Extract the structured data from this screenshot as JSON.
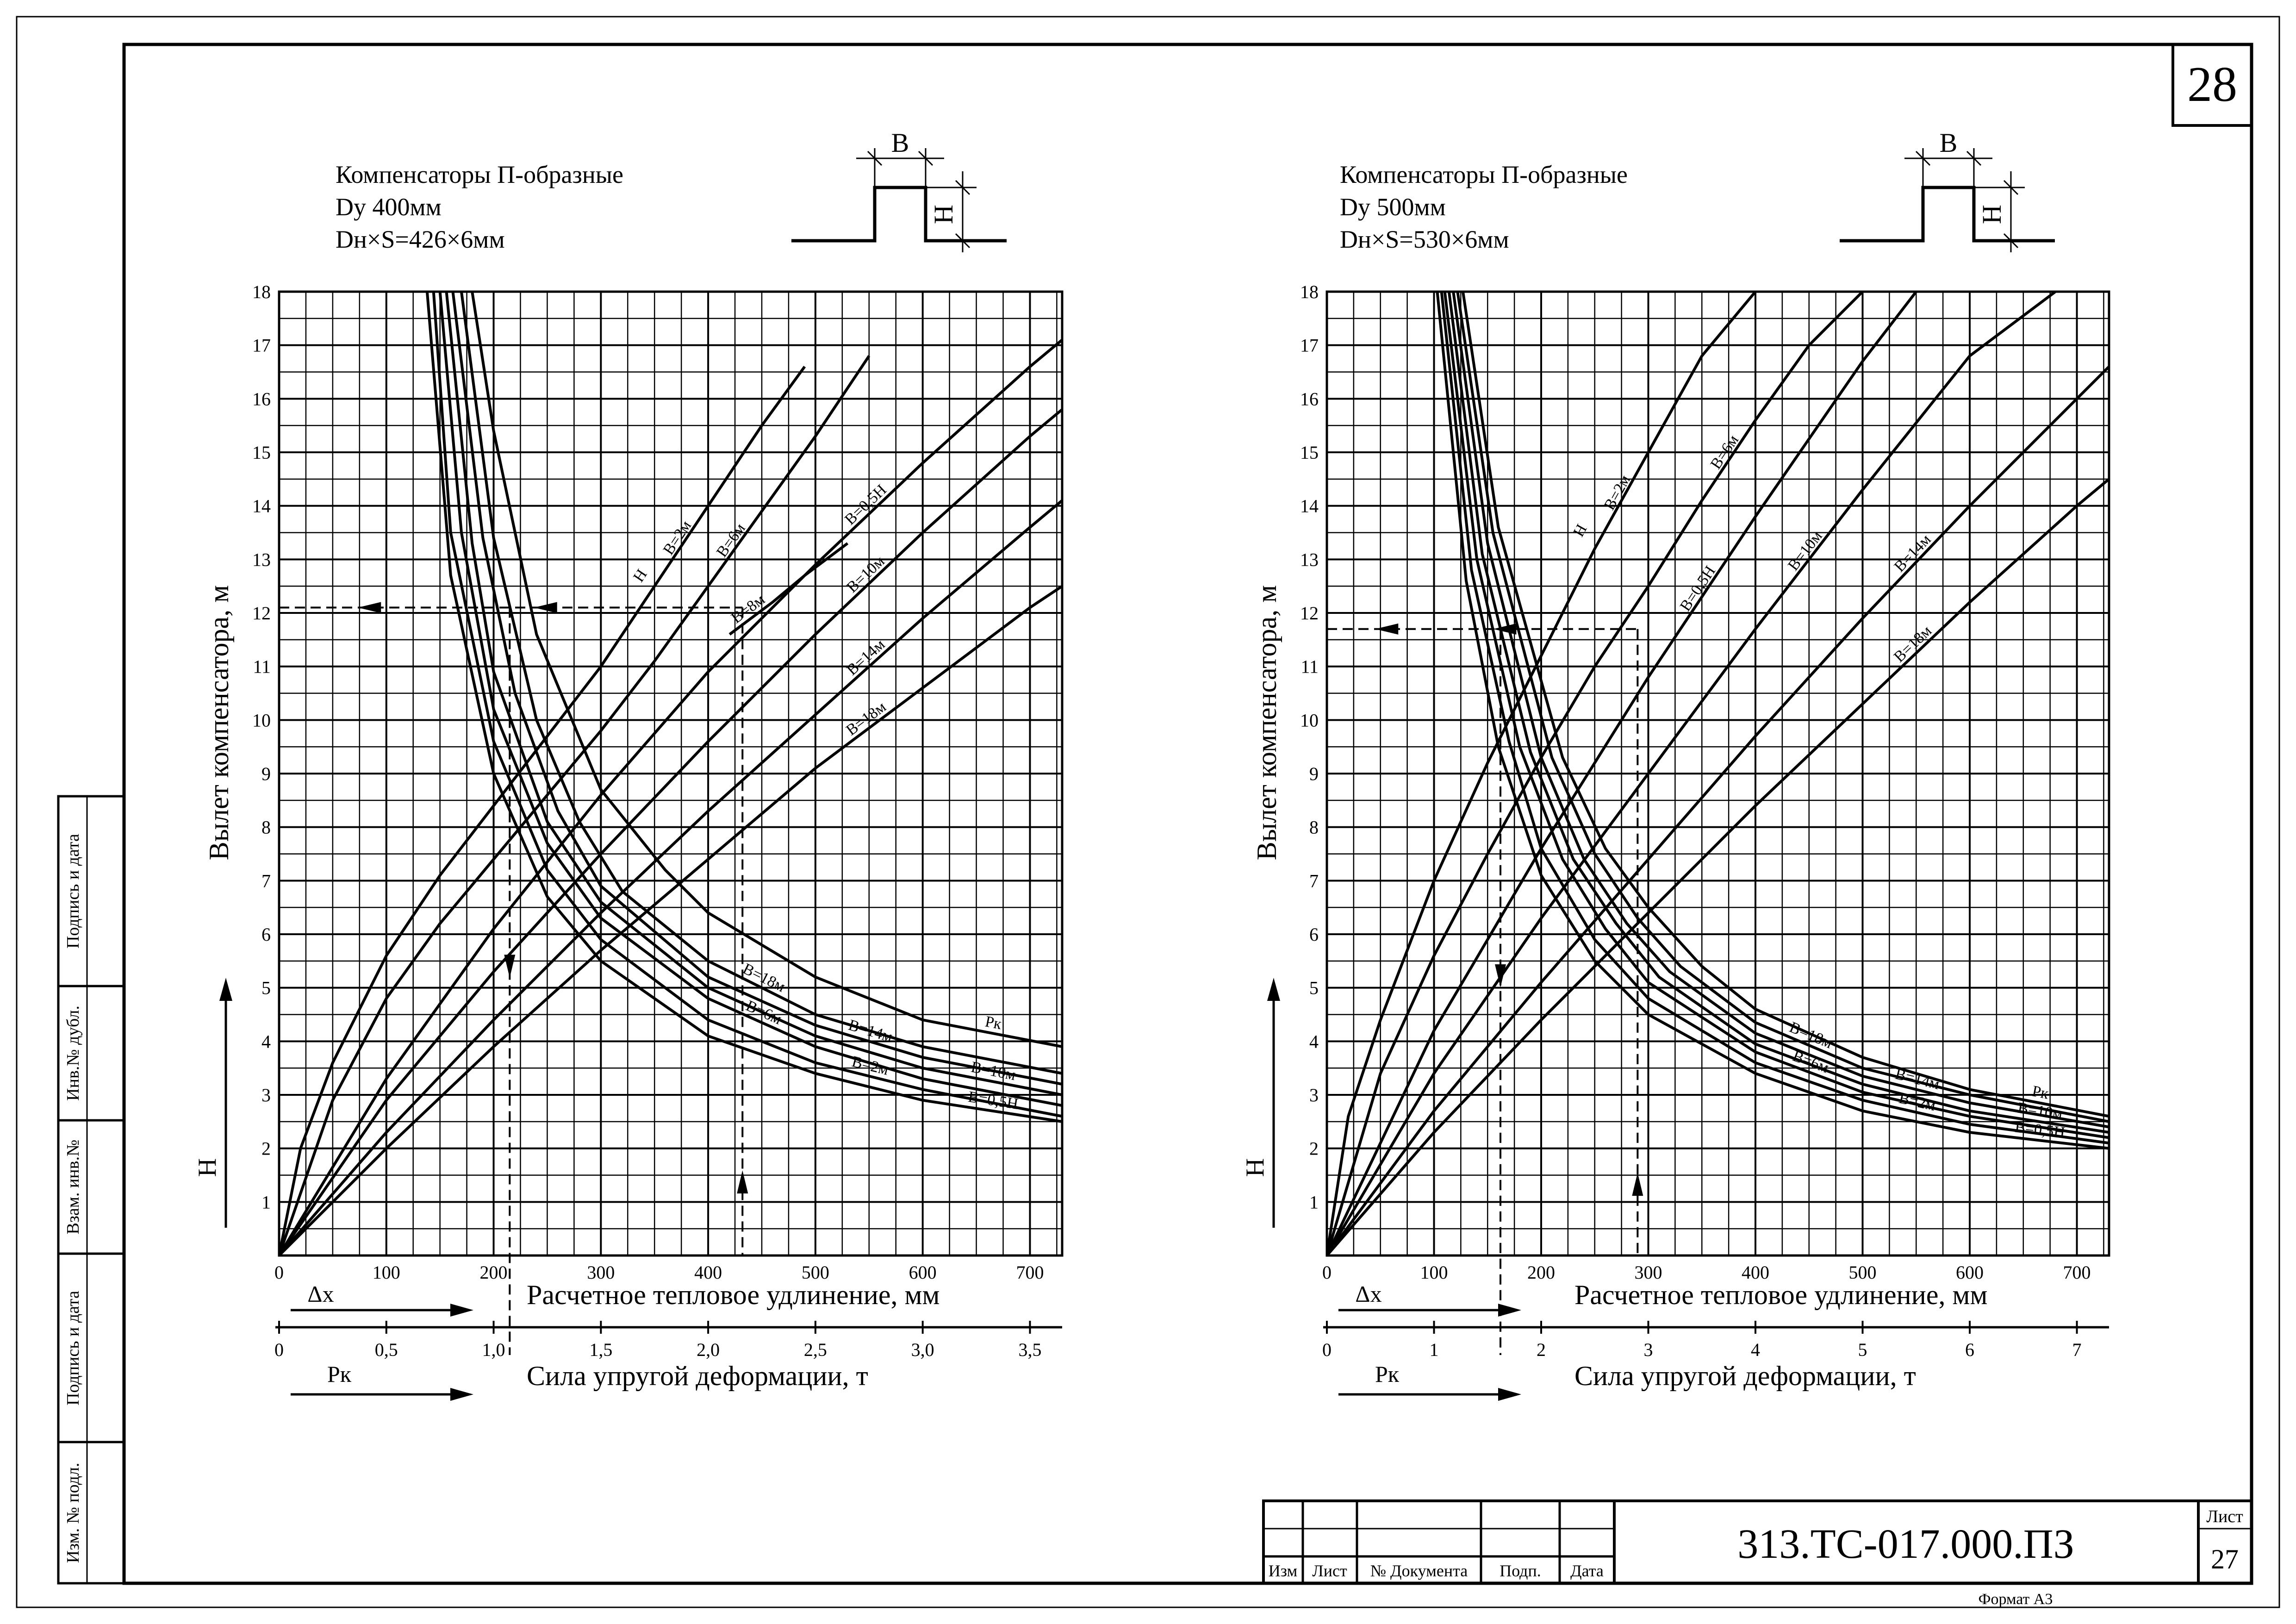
{
  "sheet": {
    "page_number": "28",
    "format_label": "Формат А3",
    "left_stamp": [
      "Изм. № подл.",
      "Подпись и дата",
      "Взам. инв.№",
      "Инв.№ дубл.",
      "Подпись и дата"
    ],
    "title_block": {
      "doc_code": "313.ТС-017.000.ПЗ",
      "list_label": "Лист",
      "list_number": "27",
      "columns": [
        "Изм",
        "Лист",
        "№ Документа",
        "Подп.",
        "Дата"
      ]
    }
  },
  "chart_data": [
    {
      "type": "line",
      "title_lines": [
        "Компенсаторы П-образные",
        "Dу 400мм",
        "Dн×S=426×6мм"
      ],
      "schematic": {
        "width_label": "В",
        "height_label": "Н"
      },
      "ylabel": "Вылет компенсатора, м",
      "ylim": [
        0,
        18
      ],
      "yticks": [
        "1",
        "2",
        "3",
        "4",
        "5",
        "6",
        "7",
        "8",
        "9",
        "10",
        "11",
        "12",
        "13",
        "14",
        "15",
        "16",
        "17",
        "18"
      ],
      "y_arrow_label": "Н",
      "xlabel": "Расчетное тепловое удлинение, мм",
      "xlim": [
        0,
        730
      ],
      "xticks": [
        {
          "value": 0,
          "label": "0"
        },
        {
          "value": 100,
          "label": "100"
        },
        {
          "value": 200,
          "label": "200"
        },
        {
          "value": 300,
          "label": "300"
        },
        {
          "value": 400,
          "label": "400"
        },
        {
          "value": 500,
          "label": "500"
        },
        {
          "value": 600,
          "label": "600"
        },
        {
          "value": 700,
          "label": "700"
        }
      ],
      "x_arrow_label": "Δх",
      "x2label": "Сила упругой деформации, т",
      "x2lim": [
        0,
        3.65
      ],
      "x2ticks": [
        {
          "value": 0,
          "label": "0"
        },
        {
          "value": 0.5,
          "label": "0,5"
        },
        {
          "value": 1.0,
          "label": "1,0"
        },
        {
          "value": 1.5,
          "label": "1,5"
        },
        {
          "value": 2.0,
          "label": "2,0"
        },
        {
          "value": 2.5,
          "label": "2,5"
        },
        {
          "value": 3.0,
          "label": "3,0"
        },
        {
          "value": 3.5,
          "label": "3,5"
        }
      ],
      "x2_arrow_label": "Рк",
      "series_elongation": [
        {
          "name": "В=2м",
          "head_label": "Н",
          "x": [
            0,
            20,
            50,
            100,
            150,
            200,
            250,
            300,
            350,
            400,
            450,
            490
          ],
          "y": [
            0,
            2.0,
            3.6,
            5.6,
            7.1,
            8.4,
            9.7,
            11.0,
            12.5,
            14.0,
            15.5,
            16.6
          ]
        },
        {
          "name": "В=6м",
          "x": [
            0,
            50,
            100,
            150,
            200,
            250,
            300,
            350,
            400,
            450,
            500,
            550
          ],
          "y": [
            0,
            2.9,
            4.8,
            6.2,
            7.4,
            8.6,
            9.8,
            11.1,
            12.5,
            13.9,
            15.3,
            16.8
          ]
        },
        {
          "name": "В=8м",
          "x": [
            420,
            460,
            490,
            530
          ],
          "y": [
            11.6,
            12.2,
            12.7,
            13.3
          ]
        },
        {
          "name": "В=0,5Н",
          "x": [
            0,
            100,
            200,
            300,
            400,
            500,
            600,
            700,
            730
          ],
          "y": [
            0,
            3.3,
            6.1,
            8.6,
            10.9,
            12.9,
            14.8,
            16.6,
            17.1
          ]
        },
        {
          "name": "В=10м",
          "x": [
            0,
            100,
            200,
            300,
            400,
            500,
            600,
            700,
            730
          ],
          "y": [
            0,
            2.9,
            5.3,
            7.5,
            9.6,
            11.6,
            13.5,
            15.3,
            15.8
          ]
        },
        {
          "name": "В=14м",
          "x": [
            0,
            100,
            200,
            300,
            400,
            500,
            600,
            700,
            730
          ],
          "y": [
            0,
            2.3,
            4.4,
            6.4,
            8.3,
            10.1,
            11.9,
            13.6,
            14.1
          ]
        },
        {
          "name": "В=18м",
          "x": [
            0,
            100,
            200,
            300,
            400,
            500,
            600,
            700,
            730
          ],
          "y": [
            0,
            2.0,
            3.9,
            5.7,
            7.4,
            9.1,
            10.6,
            12.1,
            12.5
          ]
        }
      ],
      "force_label": "Рк",
      "series_force": [
        {
          "name": "В=0,5Н",
          "x": [
            0.69,
            0.8,
            1.0,
            1.25,
            1.5,
            2.0,
            2.5,
            3.0,
            3.65
          ],
          "y": [
            18,
            12.7,
            9.0,
            6.7,
            5.5,
            4.1,
            3.4,
            2.9,
            2.5
          ]
        },
        {
          "name": "В=2м",
          "x": [
            0.72,
            0.8,
            1.0,
            1.25,
            1.5,
            2.0,
            2.5,
            3.0,
            3.65
          ],
          "y": [
            18,
            13.5,
            9.6,
            7.2,
            5.9,
            4.4,
            3.6,
            3.1,
            2.6
          ]
        },
        {
          "name": "В=6м",
          "x": [
            0.75,
            0.85,
            1.0,
            1.25,
            1.5,
            2.0,
            2.5,
            3.0,
            3.65
          ],
          "y": [
            18,
            13.5,
            10.2,
            7.7,
            6.3,
            4.8,
            3.9,
            3.3,
            2.8
          ]
        },
        {
          "name": "В=10м",
          "x": [
            0.78,
            0.9,
            1.0,
            1.25,
            1.5,
            2.0,
            2.5,
            3.0,
            3.65
          ],
          "y": [
            18,
            13.3,
            10.9,
            8.1,
            6.6,
            5.0,
            4.1,
            3.5,
            3.0
          ]
        },
        {
          "name": "В=14м",
          "x": [
            0.81,
            0.95,
            1.1,
            1.3,
            1.5,
            2.0,
            2.5,
            3.0,
            3.65
          ],
          "y": [
            18,
            13.4,
            10.5,
            8.3,
            6.9,
            5.2,
            4.3,
            3.7,
            3.2
          ]
        },
        {
          "name": "В=18м",
          "x": [
            0.85,
            1.0,
            1.2,
            1.4,
            1.6,
            2.0,
            2.5,
            3.0,
            3.65
          ],
          "y": [
            18,
            13.4,
            10.0,
            8.1,
            6.8,
            5.5,
            4.5,
            3.9,
            3.4
          ]
        },
        {
          "name": "Рк",
          "x": [
            0.9,
            1.0,
            1.2,
            1.5,
            1.8,
            2.0,
            2.5,
            3.0,
            3.65
          ],
          "y": [
            18,
            15.4,
            11.6,
            8.7,
            7.2,
            6.4,
            5.2,
            4.4,
            3.9
          ]
        }
      ],
      "example_lines": [
        {
          "axis": "x",
          "at": 215,
          "from": 0,
          "to": 12.1,
          "arrow": "down"
        },
        {
          "axis": "x",
          "at": 432,
          "from": 0,
          "to": 12.1,
          "arrow": "up"
        },
        {
          "axis": "y",
          "at": 12.1,
          "from": 0,
          "to": 432,
          "arrow": "left"
        }
      ]
    },
    {
      "type": "line",
      "title_lines": [
        "Компенсаторы П-образные",
        "Dу 500мм",
        "Dн×S=530×6мм"
      ],
      "schematic": {
        "width_label": "В",
        "height_label": "Н"
      },
      "ylabel": "Вылет компенсатора, м",
      "ylim": [
        0,
        18
      ],
      "yticks": [
        "1",
        "2",
        "3",
        "4",
        "5",
        "6",
        "7",
        "8",
        "9",
        "10",
        "11",
        "12",
        "13",
        "14",
        "15",
        "16",
        "17",
        "18"
      ],
      "y_arrow_label": "Н",
      "xlabel": "Расчетное тепловое удлинение, мм",
      "xlim": [
        0,
        730
      ],
      "xticks": [
        {
          "value": 0,
          "label": "0"
        },
        {
          "value": 100,
          "label": "100"
        },
        {
          "value": 200,
          "label": "200"
        },
        {
          "value": 300,
          "label": "300"
        },
        {
          "value": 400,
          "label": "400"
        },
        {
          "value": 500,
          "label": "500"
        },
        {
          "value": 600,
          "label": "600"
        },
        {
          "value": 700,
          "label": "700"
        }
      ],
      "x_arrow_label": "Δх",
      "x2label": "Сила упругой деформации, т",
      "x2lim": [
        0,
        7.3
      ],
      "x2ticks": [
        {
          "value": 0,
          "label": "0"
        },
        {
          "value": 1,
          "label": "1"
        },
        {
          "value": 2,
          "label": "2"
        },
        {
          "value": 3,
          "label": "3"
        },
        {
          "value": 4,
          "label": "4"
        },
        {
          "value": 5,
          "label": "5"
        },
        {
          "value": 6,
          "label": "6"
        },
        {
          "value": 7,
          "label": "7"
        }
      ],
      "x2_arrow_label": "Рк",
      "series_elongation": [
        {
          "name": "В=2м",
          "head_label": "Н",
          "x": [
            0,
            20,
            50,
            100,
            150,
            200,
            250,
            300,
            350,
            400
          ],
          "y": [
            0,
            2.6,
            4.4,
            7.0,
            9.2,
            11.2,
            13.2,
            15.0,
            16.8,
            18.0
          ]
        },
        {
          "name": "В=6м",
          "x": [
            0,
            50,
            100,
            150,
            200,
            250,
            300,
            350,
            400,
            450,
            500
          ],
          "y": [
            0,
            3.4,
            5.6,
            7.5,
            9.3,
            11.0,
            12.5,
            14.1,
            15.6,
            17.0,
            18.0
          ]
        },
        {
          "name": "В=0,5Н",
          "x": [
            0,
            100,
            200,
            300,
            400,
            500,
            550
          ],
          "y": [
            0,
            4.2,
            7.6,
            10.8,
            13.8,
            16.7,
            18.0
          ]
        },
        {
          "name": "В=10м",
          "x": [
            0,
            100,
            200,
            300,
            400,
            500,
            600,
            680
          ],
          "y": [
            0,
            3.4,
            6.3,
            9.0,
            11.7,
            14.3,
            16.8,
            18.0
          ]
        },
        {
          "name": "В=14м",
          "x": [
            0,
            100,
            200,
            300,
            400,
            500,
            600,
            700,
            730
          ],
          "y": [
            0,
            2.7,
            5.1,
            7.4,
            9.7,
            11.9,
            14.0,
            16.0,
            16.6
          ]
        },
        {
          "name": "В=18м",
          "x": [
            0,
            100,
            200,
            300,
            400,
            500,
            600,
            700,
            730
          ],
          "y": [
            0,
            2.3,
            4.4,
            6.4,
            8.4,
            10.3,
            12.2,
            14.0,
            14.5
          ]
        }
      ],
      "force_label": "Рк",
      "series_force": [
        {
          "name": "В=0,5Н",
          "x": [
            1.03,
            1.3,
            1.6,
            2.0,
            2.5,
            3.0,
            4.0,
            5.0,
            6.0,
            7.3
          ],
          "y": [
            18,
            12.6,
            9.5,
            7.1,
            5.5,
            4.5,
            3.4,
            2.7,
            2.3,
            2.0
          ]
        },
        {
          "name": "В=2м",
          "x": [
            1.07,
            1.35,
            1.7,
            2.0,
            2.5,
            3.0,
            4.0,
            5.0,
            6.0,
            7.3
          ],
          "y": [
            18,
            12.8,
            9.6,
            7.6,
            5.9,
            4.8,
            3.6,
            2.9,
            2.45,
            2.1
          ]
        },
        {
          "name": "В=6м",
          "x": [
            1.1,
            1.4,
            1.8,
            2.2,
            2.6,
            3.0,
            4.0,
            5.0,
            6.0,
            7.3
          ],
          "y": [
            18,
            13.0,
            9.5,
            7.4,
            6.1,
            5.1,
            3.8,
            3.05,
            2.6,
            2.2
          ]
        },
        {
          "name": "В=10м",
          "x": [
            1.14,
            1.45,
            1.9,
            2.3,
            2.7,
            3.1,
            4.0,
            5.0,
            6.0,
            7.3
          ],
          "y": [
            18,
            13.1,
            9.4,
            7.4,
            6.2,
            5.2,
            3.95,
            3.2,
            2.7,
            2.3
          ]
        },
        {
          "name": "В=14м",
          "x": [
            1.18,
            1.5,
            2.0,
            2.4,
            2.8,
            3.2,
            4.0,
            5.0,
            6.0,
            7.3
          ],
          "y": [
            18,
            13.3,
            9.3,
            7.4,
            6.2,
            5.3,
            4.15,
            3.35,
            2.85,
            2.4
          ]
        },
        {
          "name": "В=18м",
          "x": [
            1.22,
            1.55,
            2.1,
            2.5,
            2.9,
            3.3,
            4.0,
            5.0,
            6.0,
            7.3
          ],
          "y": [
            18,
            13.5,
            9.3,
            7.5,
            6.3,
            5.4,
            4.35,
            3.5,
            3.0,
            2.5
          ]
        },
        {
          "name": "Рк",
          "x": [
            1.27,
            1.6,
            2.2,
            2.6,
            3.0,
            3.5,
            4.0,
            5.0,
            6.0,
            7.3
          ],
          "y": [
            18,
            13.6,
            9.3,
            7.6,
            6.5,
            5.4,
            4.6,
            3.7,
            3.1,
            2.6
          ]
        }
      ],
      "example_lines": [
        {
          "axis": "x",
          "at": 162,
          "from": 0,
          "to": 11.7,
          "arrow": "down"
        },
        {
          "axis": "x",
          "at": 290,
          "from": 0,
          "to": 11.7,
          "arrow": "up"
        },
        {
          "axis": "y",
          "at": 11.7,
          "from": 0,
          "to": 290,
          "arrow": "left"
        }
      ]
    }
  ]
}
